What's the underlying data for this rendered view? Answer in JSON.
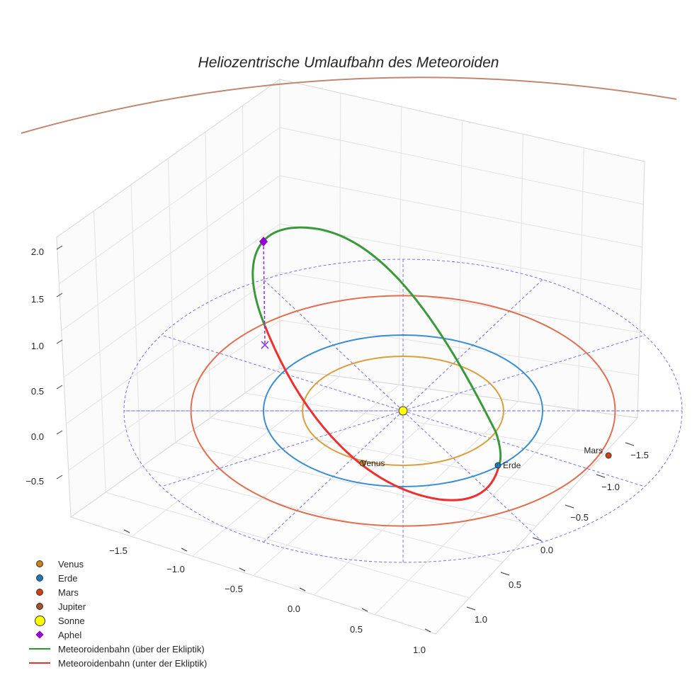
{
  "chart_data": {
    "type": "scatter",
    "title": "Heliozentrische Umlaufbahn des Meteoroiden",
    "xlim": [
      -1.5,
      1.0
    ],
    "ylim": [
      -1.5,
      1.0
    ],
    "zlim": [
      -0.5,
      2.0
    ],
    "x_ticks": [
      "−1.5",
      "−1.0",
      "−0.5",
      "0.0",
      "0.5",
      "1.0"
    ],
    "y_ticks": [
      "−1.5",
      "−1.0",
      "−0.5",
      "0.0",
      "0.5",
      "1.0"
    ],
    "z_ticks": [
      "2.0",
      "1.5",
      "1.0",
      "0.5",
      "0.0",
      "−0.5"
    ],
    "orbits": [
      {
        "name": "Venus",
        "radius_au": 0.72,
        "color": "#d9a040"
      },
      {
        "name": "Erde",
        "radius_au": 1.0,
        "color": "#3a8fd0"
      },
      {
        "name": "Mars",
        "radius_au": 1.52,
        "color": "#e07050"
      },
      {
        "name": "Jupiter",
        "radius_au": 5.2,
        "color": "#c08870"
      }
    ],
    "planet_labels": [
      "Venus",
      "Erde",
      "Mars"
    ],
    "legend": [
      {
        "label": "Venus",
        "kind": "dot",
        "color": "#c8801a"
      },
      {
        "label": "Erde",
        "kind": "dot",
        "color": "#1f77b4"
      },
      {
        "label": "Mars",
        "kind": "dot",
        "color": "#d04010"
      },
      {
        "label": "Jupiter",
        "kind": "dot",
        "color": "#a0522d"
      },
      {
        "label": "Sonne",
        "kind": "sun",
        "color": "#ffff00"
      },
      {
        "label": "Aphel",
        "kind": "diamond",
        "color": "#9400d3"
      },
      {
        "label": "Meteoroidenbahn (über der Ekliptik)",
        "kind": "line",
        "color": "#2a9a2a"
      },
      {
        "label": "Meteoroidenbahn (unter der Ekliptik)",
        "kind": "line",
        "color": "#ee3030"
      }
    ],
    "legend_placement": "lower-left"
  }
}
